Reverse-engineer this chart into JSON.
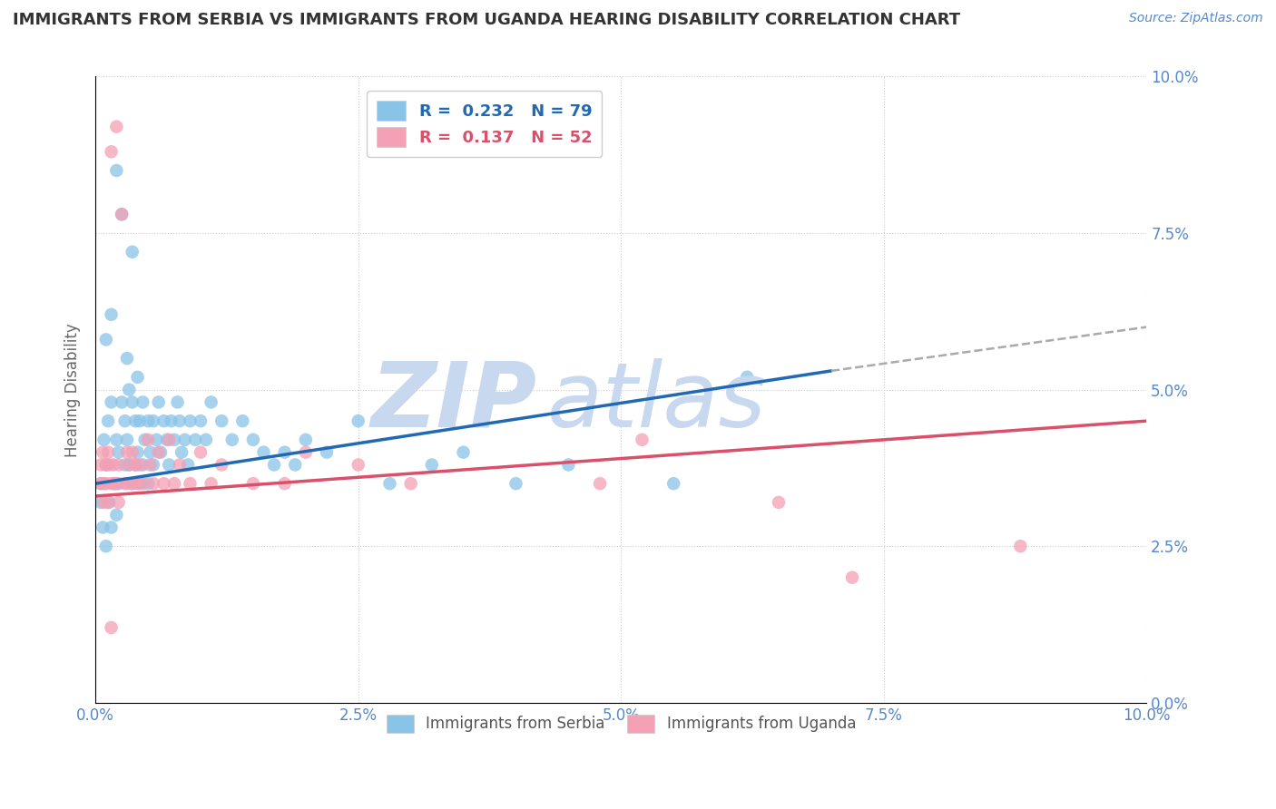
{
  "title": "IMMIGRANTS FROM SERBIA VS IMMIGRANTS FROM UGANDA HEARING DISABILITY CORRELATION CHART",
  "source_text": "Source: ZipAtlas.com",
  "ylabel": "Hearing Disability",
  "xlim": [
    0.0,
    10.0
  ],
  "ylim": [
    0.0,
    10.0
  ],
  "yticks": [
    0.0,
    2.5,
    5.0,
    7.5,
    10.0
  ],
  "xticks": [
    0.0,
    2.5,
    5.0,
    7.5,
    10.0
  ],
  "serbia_color": "#89C4E8",
  "uganda_color": "#F4A0B5",
  "serbia_line_color": "#2269B3",
  "uganda_line_color": "#D9506A",
  "serbia_R": 0.232,
  "serbia_N": 79,
  "uganda_R": 0.137,
  "uganda_N": 52,
  "legend_serbia_label": "R =  0.232   N = 79",
  "legend_uganda_label": "R =  0.137   N = 52",
  "legend_serbia_display": "Immigrants from Serbia",
  "legend_uganda_display": "Immigrants from Uganda",
  "title_color": "#333333",
  "axis_color": "#5588CC",
  "watermark_color": "#C8D8EE",
  "serbia_x": [
    0.05,
    0.08,
    0.1,
    0.1,
    0.12,
    0.13,
    0.15,
    0.15,
    0.18,
    0.2,
    0.2,
    0.22,
    0.22,
    0.25,
    0.25,
    0.28,
    0.28,
    0.3,
    0.3,
    0.32,
    0.32,
    0.35,
    0.35,
    0.35,
    0.38,
    0.38,
    0.4,
    0.4,
    0.42,
    0.42,
    0.45,
    0.45,
    0.47,
    0.5,
    0.5,
    0.52,
    0.55,
    0.55,
    0.58,
    0.6,
    0.62,
    0.65,
    0.68,
    0.7,
    0.72,
    0.75,
    0.78,
    0.8,
    0.82,
    0.85,
    0.88,
    0.9,
    0.95,
    1.0,
    1.05,
    1.1,
    1.2,
    1.3,
    1.4,
    1.5,
    1.6,
    1.7,
    1.8,
    1.9,
    2.0,
    2.2,
    2.5,
    2.8,
    3.2,
    3.5,
    4.0,
    4.5,
    5.5,
    6.2,
    0.05,
    0.07,
    0.1,
    0.15,
    0.2
  ],
  "serbia_y": [
    3.5,
    4.2,
    5.8,
    3.8,
    4.5,
    3.2,
    6.2,
    4.8,
    3.5,
    8.5,
    4.2,
    4.0,
    3.5,
    7.8,
    4.8,
    4.5,
    3.8,
    5.5,
    4.2,
    5.0,
    3.8,
    7.2,
    4.8,
    3.5,
    4.5,
    3.8,
    5.2,
    4.0,
    4.5,
    3.5,
    4.8,
    3.8,
    4.2,
    4.5,
    3.5,
    4.0,
    4.5,
    3.8,
    4.2,
    4.8,
    4.0,
    4.5,
    4.2,
    3.8,
    4.5,
    4.2,
    4.8,
    4.5,
    4.0,
    4.2,
    3.8,
    4.5,
    4.2,
    4.5,
    4.2,
    4.8,
    4.5,
    4.2,
    4.5,
    4.2,
    4.0,
    3.8,
    4.0,
    3.8,
    4.2,
    4.0,
    4.5,
    3.5,
    3.8,
    4.0,
    3.5,
    3.8,
    3.5,
    5.2,
    3.2,
    2.8,
    2.5,
    2.8,
    3.0
  ],
  "uganda_x": [
    0.05,
    0.05,
    0.07,
    0.08,
    0.08,
    0.1,
    0.1,
    0.12,
    0.12,
    0.13,
    0.15,
    0.15,
    0.17,
    0.18,
    0.2,
    0.2,
    0.22,
    0.22,
    0.25,
    0.28,
    0.3,
    0.3,
    0.32,
    0.35,
    0.35,
    0.38,
    0.4,
    0.42,
    0.45,
    0.5,
    0.52,
    0.55,
    0.6,
    0.65,
    0.7,
    0.75,
    0.8,
    0.9,
    1.0,
    1.1,
    1.2,
    1.5,
    1.8,
    2.0,
    2.5,
    3.0,
    4.8,
    5.2,
    6.5,
    7.2,
    8.8,
    0.15
  ],
  "uganda_y": [
    3.5,
    3.8,
    4.0,
    3.5,
    3.2,
    3.8,
    3.5,
    4.0,
    3.2,
    3.8,
    8.8,
    3.5,
    3.8,
    3.5,
    9.2,
    3.5,
    3.8,
    3.2,
    7.8,
    3.5,
    4.0,
    3.5,
    3.8,
    4.0,
    3.5,
    3.8,
    3.5,
    3.8,
    3.5,
    4.2,
    3.8,
    3.5,
    4.0,
    3.5,
    4.2,
    3.5,
    3.8,
    3.5,
    4.0,
    3.5,
    3.8,
    3.5,
    3.5,
    4.0,
    3.8,
    3.5,
    3.5,
    4.2,
    3.2,
    2.0,
    2.5,
    1.2
  ],
  "serbia_line_x0": 0.0,
  "serbia_line_y0": 3.5,
  "serbia_line_x1": 7.0,
  "serbia_line_y1": 5.3,
  "serbia_dash_x0": 7.0,
  "serbia_dash_y0": 5.3,
  "serbia_dash_x1": 10.0,
  "serbia_dash_y1": 6.0,
  "uganda_line_x0": 0.0,
  "uganda_line_y0": 3.3,
  "uganda_line_x1": 10.0,
  "uganda_line_y1": 4.5
}
